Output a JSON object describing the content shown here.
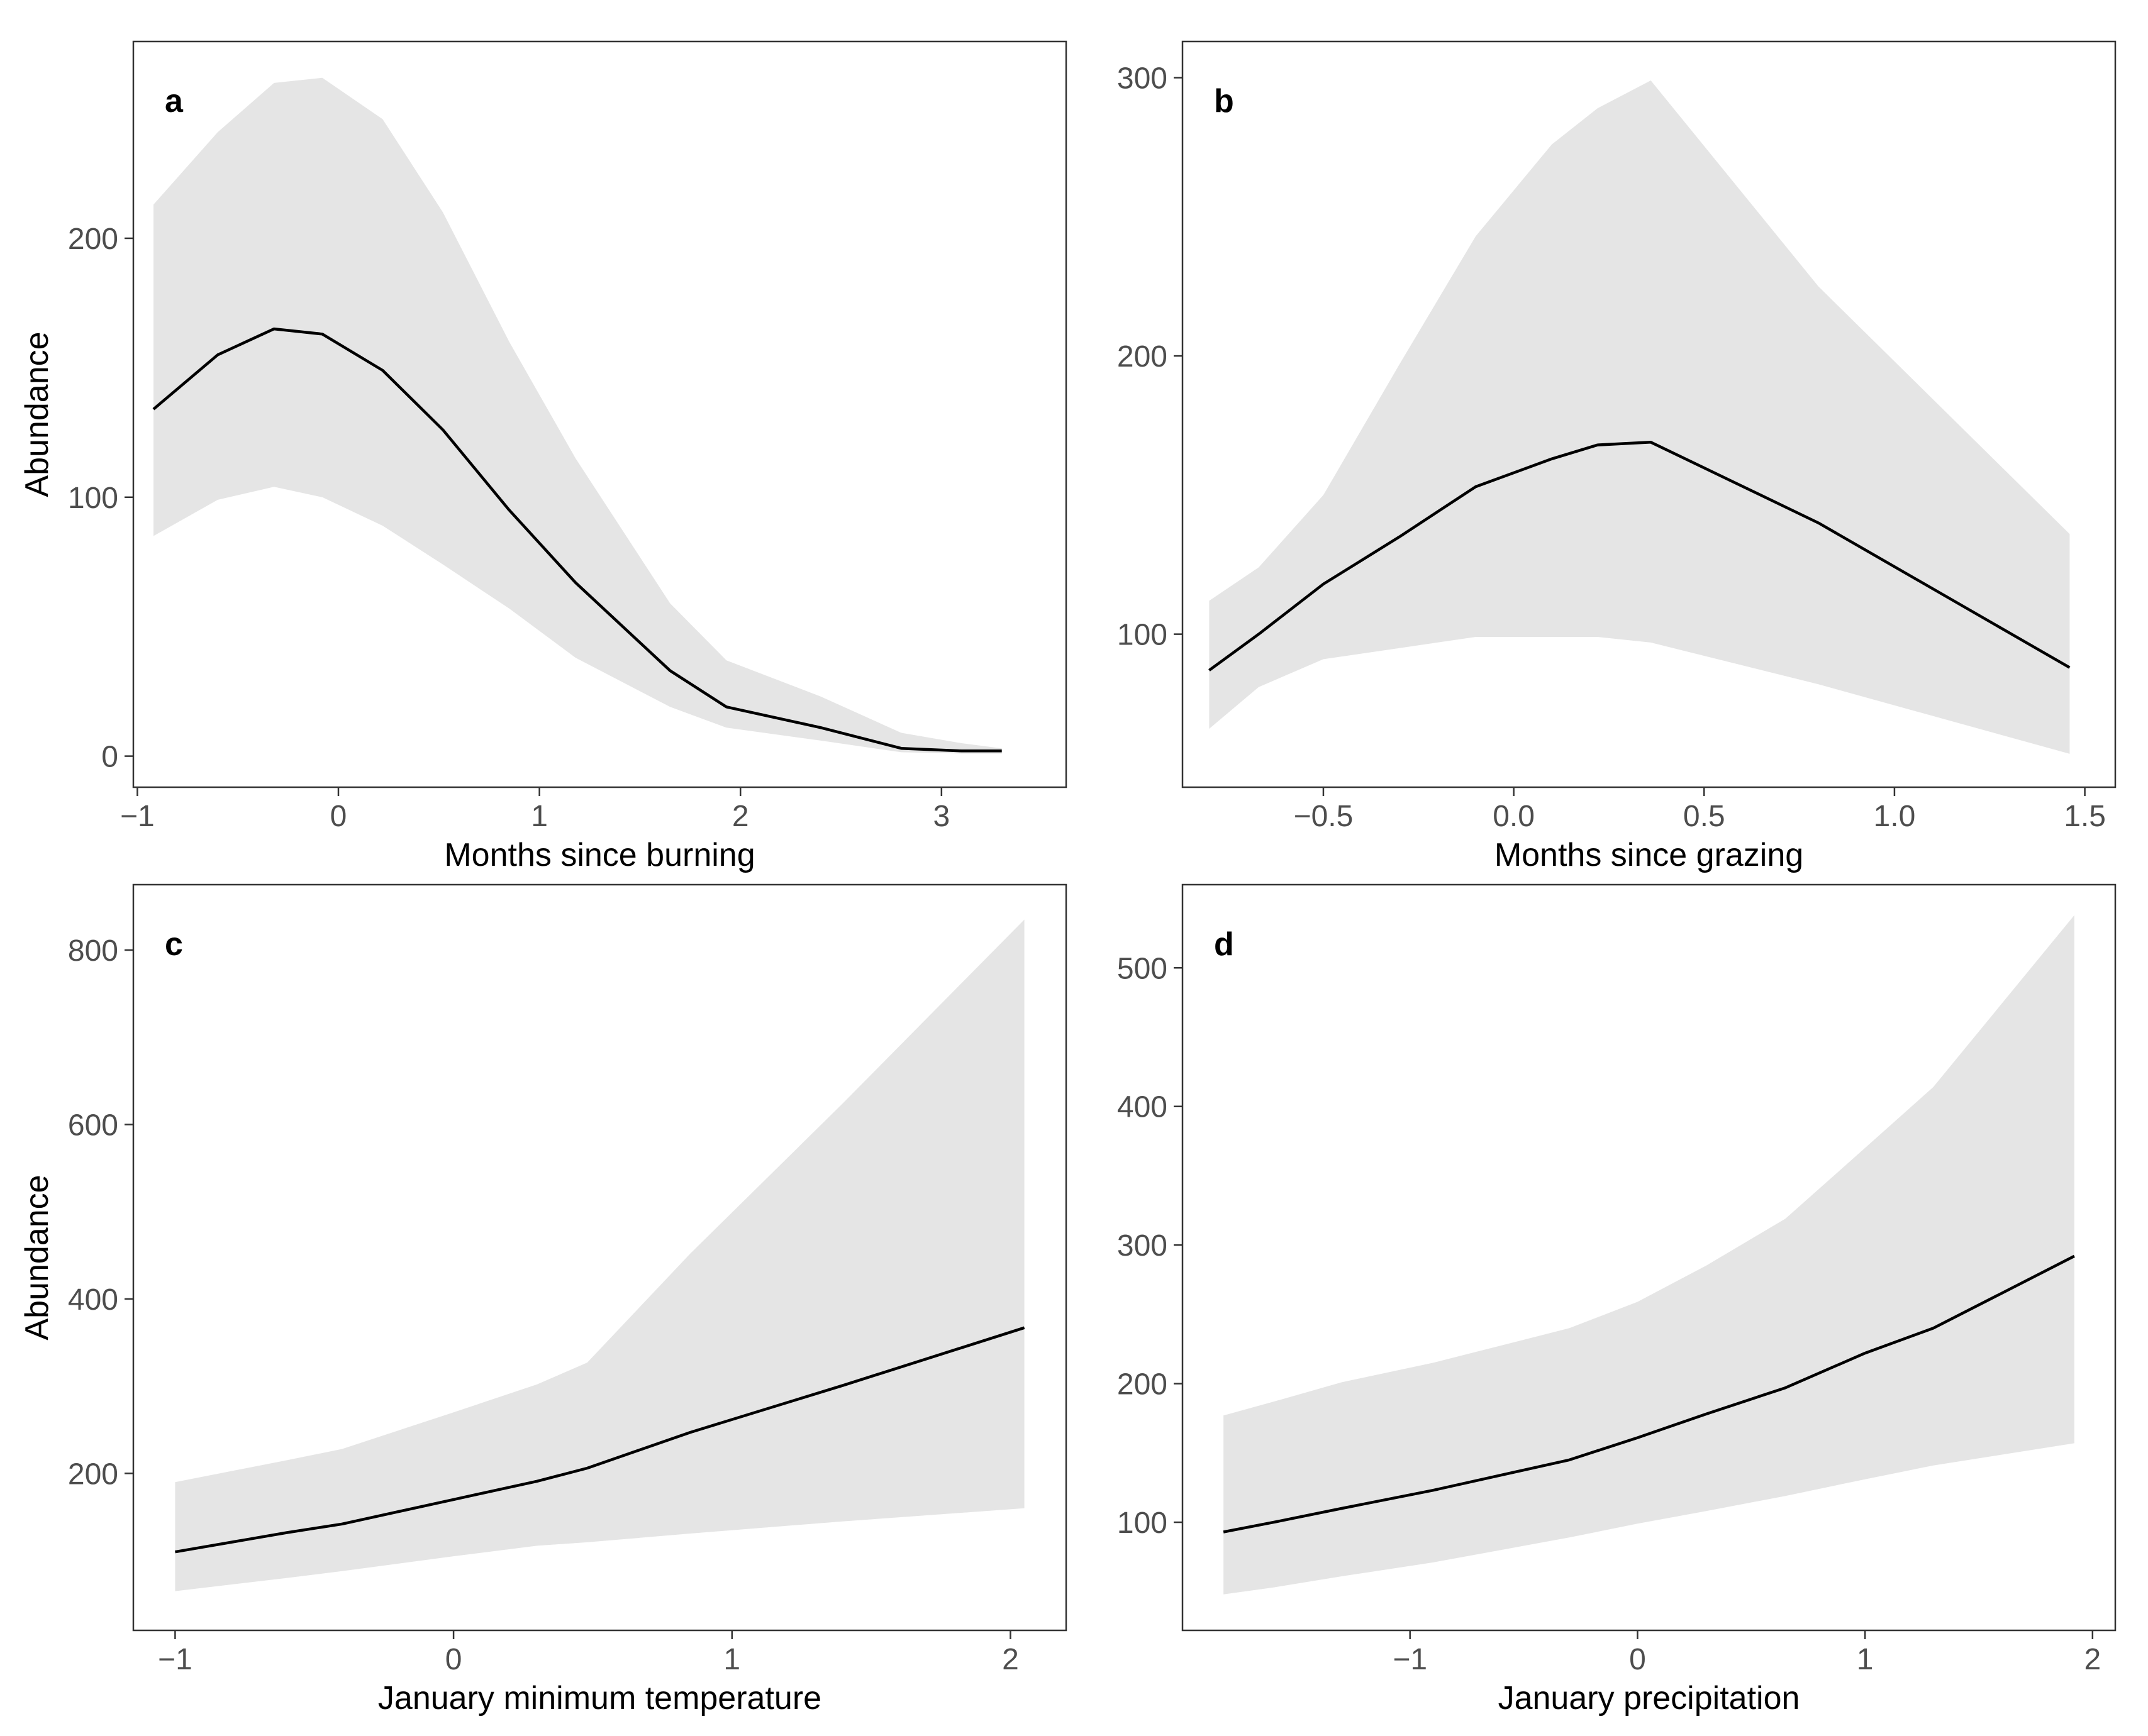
{
  "style": {
    "ribbon_color": "#e5e5e5",
    "line_color": "#000000",
    "tick_color": "#4d4d4d",
    "frame_color": "#333333"
  },
  "chart_data": [
    {
      "type": "line",
      "panel": "a",
      "title": "",
      "xlabel": "Months since burning",
      "ylabel": "Abundance",
      "xlim": [
        -1.02,
        3.62
      ],
      "ylim": [
        -12,
        276
      ],
      "xticks": [
        -1,
        0,
        1,
        2,
        3
      ],
      "xtick_labels": [
        "−1",
        "0",
        "1",
        "2",
        "3"
      ],
      "yticks": [
        0,
        100,
        200
      ],
      "ytick_labels": [
        "0",
        "100",
        "200"
      ],
      "x": [
        -0.92,
        -0.6,
        -0.32,
        -0.08,
        0.22,
        0.52,
        0.85,
        1.18,
        1.65,
        1.93,
        2.4,
        2.8,
        3.1,
        3.3
      ],
      "series": [
        {
          "name": "fit",
          "values": [
            134,
            155,
            165,
            163,
            149,
            126,
            95,
            67,
            33,
            19,
            11,
            3,
            2,
            2
          ]
        },
        {
          "name": "lower",
          "values": [
            85,
            99,
            104,
            100,
            89,
            74,
            57,
            38,
            19,
            11,
            6,
            1.5,
            1,
            1
          ]
        },
        {
          "name": "upper",
          "values": [
            213,
            241,
            260,
            262,
            246,
            210,
            160,
            115,
            59,
            37,
            23,
            9,
            5,
            3
          ]
        }
      ]
    },
    {
      "type": "line",
      "panel": "b",
      "title": "",
      "xlabel": "Months since grazing",
      "ylabel": "",
      "xlim": [
        -0.87,
        1.58
      ],
      "ylim": [
        45,
        313
      ],
      "xticks": [
        -0.5,
        0.0,
        0.5,
        1.0,
        1.5
      ],
      "xtick_labels": [
        "−0.5",
        "0.0",
        "0.5",
        "1.0",
        "1.5"
      ],
      "yticks": [
        100,
        200,
        300
      ],
      "ytick_labels": [
        "100",
        "200",
        "300"
      ],
      "x": [
        -0.8,
        -0.67,
        -0.5,
        -0.3,
        -0.1,
        0.1,
        0.22,
        0.36,
        0.8,
        1.46
      ],
      "series": [
        {
          "name": "fit",
          "values": [
            87,
            100,
            118,
            135,
            153,
            163,
            168,
            169,
            140,
            88
          ]
        },
        {
          "name": "lower",
          "values": [
            66,
            81,
            91,
            95,
            99,
            99,
            99,
            97,
            82,
            57
          ]
        },
        {
          "name": "upper",
          "values": [
            112,
            124,
            150,
            197,
            243,
            276,
            289,
            299,
            225,
            136
          ]
        }
      ]
    },
    {
      "type": "line",
      "panel": "c",
      "title": "",
      "xlabel": "January minimum temperature",
      "ylabel": "Abundance",
      "xlim": [
        -1.15,
        2.2
      ],
      "ylim": [
        20,
        875
      ],
      "xticks": [
        -1,
        0,
        1,
        2
      ],
      "xtick_labels": [
        "−1",
        "0",
        "1",
        "2"
      ],
      "yticks": [
        200,
        400,
        600,
        800
      ],
      "ytick_labels": [
        "200",
        "400",
        "600",
        "800"
      ],
      "x": [
        -1.0,
        -0.6,
        -0.4,
        0.0,
        0.3,
        0.48,
        0.85,
        1.4,
        2.05
      ],
      "series": [
        {
          "name": "fit",
          "values": [
            110,
            132,
            142,
            170,
            191,
            206,
            247,
            301,
            367
          ]
        },
        {
          "name": "lower",
          "values": [
            65,
            80,
            88,
            105,
            117,
            121,
            131,
            145,
            160
          ]
        },
        {
          "name": "upper",
          "values": [
            190,
            215,
            228,
            270,
            302,
            327,
            452,
            625,
            835
          ]
        }
      ]
    },
    {
      "type": "line",
      "panel": "d",
      "title": "",
      "xlabel": "January precipitation",
      "ylabel": "",
      "xlim": [
        -2.0,
        2.1
      ],
      "ylim": [
        22,
        560
      ],
      "xticks": [
        -1,
        0,
        1,
        2
      ],
      "xtick_labels": [
        "−1",
        "0",
        "1",
        "2"
      ],
      "yticks": [
        100,
        200,
        300,
        400,
        500
      ],
      "ytick_labels": [
        "100",
        "200",
        "300",
        "400",
        "500"
      ],
      "x": [
        -1.82,
        -1.6,
        -1.3,
        -0.9,
        -0.3,
        0.0,
        0.3,
        0.65,
        1.0,
        1.3,
        1.92
      ],
      "series": [
        {
          "name": "fit",
          "values": [
            93,
            100,
            110,
            123,
            145,
            161,
            178,
            197,
            222,
            240,
            292
          ]
        },
        {
          "name": "lower",
          "values": [
            48,
            53,
            61,
            71,
            89,
            99,
            108,
            119,
            131,
            141,
            157
          ]
        },
        {
          "name": "upper",
          "values": [
            177,
            187,
            201,
            215,
            240,
            259,
            285,
            319,
            370,
            414,
            538
          ]
        }
      ]
    }
  ]
}
